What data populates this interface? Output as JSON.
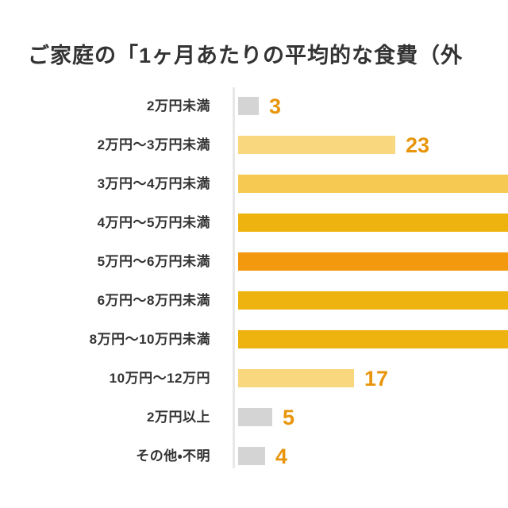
{
  "chart_data": {
    "type": "bar",
    "orientation": "horizontal",
    "title": "ご家庭の「1ヶ月あたりの平均的な食費（外",
    "categories": [
      "2万円未満",
      "2万円〜3万円未満",
      "3万円〜4万円未満",
      "4万円〜5万円未満",
      "5万円〜6万円未満",
      "6万円〜8万円未満",
      "8万円〜10万円未満",
      "10万円〜12万円",
      "2万円以上",
      "その他・不明"
    ],
    "values": [
      3,
      23,
      null,
      null,
      null,
      null,
      null,
      17,
      5,
      4
    ],
    "bars": [
      {
        "label": "2万円未満",
        "value": 3,
        "color": "#d4d4d4",
        "cut_off": false
      },
      {
        "label": "2万円〜3万円未満",
        "value": 23,
        "color": "#f9d77e",
        "cut_off": false
      },
      {
        "label": "3万円〜4万円未満",
        "value": null,
        "color": "#f6ca52",
        "cut_off": true
      },
      {
        "label": "4万円〜5万円未満",
        "value": null,
        "color": "#eeb30f",
        "cut_off": true
      },
      {
        "label": "5万円〜6万円未満",
        "value": null,
        "color": "#f2990d",
        "cut_off": true
      },
      {
        "label": "6万円〜8万円未満",
        "value": null,
        "color": "#eeb30f",
        "cut_off": true
      },
      {
        "label": "8万円〜10万円未満",
        "value": null,
        "color": "#eeb30f",
        "cut_off": true
      },
      {
        "label": "10万円〜12万円",
        "value": 17,
        "color": "#f9d77e",
        "cut_off": false
      },
      {
        "label": "2万円以上",
        "value": 5,
        "color": "#d4d4d4",
        "cut_off": false
      },
      {
        "label": "その他・不明",
        "value": 4,
        "color": "#d4d4d4",
        "cut_off": false
      }
    ],
    "colors": {
      "value_label": "#e8950c",
      "category_label": "#333333",
      "title": "#333333",
      "axis_line": "#e8e8e8"
    },
    "legend": "none",
    "grid": "off"
  }
}
